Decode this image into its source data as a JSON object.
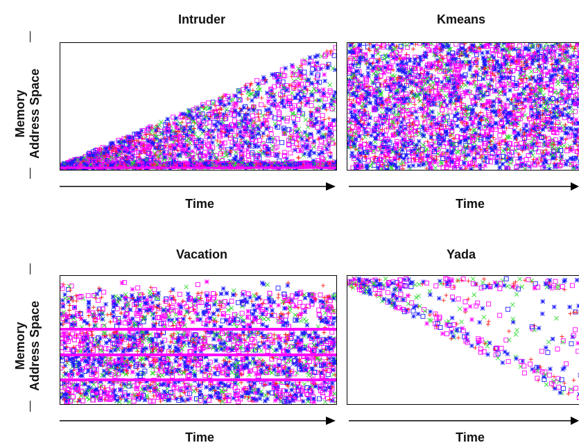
{
  "figure": {
    "ylabel_line1": "Memory",
    "ylabel_line2": "Address Space",
    "xlabel": "Time"
  },
  "colors": {
    "magenta": "#ff00ff",
    "blue": "#1a1aff",
    "green": "#33dd33",
    "red": "#ff2020"
  },
  "chart_data": [
    {
      "type": "scatter",
      "title": "Intruder",
      "xlabel": "Time",
      "ylabel": "Memory Address Space",
      "pattern": "triangular",
      "markers": [
        "square",
        "asterisk",
        "cross",
        "plus"
      ],
      "grid": false
    },
    {
      "type": "scatter",
      "title": "Kmeans",
      "xlabel": "Time",
      "ylabel": "",
      "pattern": "dense-uniform",
      "markers": [
        "square",
        "asterisk",
        "cross",
        "plus"
      ],
      "grid": false
    },
    {
      "type": "scatter",
      "title": "Vacation",
      "xlabel": "Time",
      "ylabel": "Memory Address Space",
      "pattern": "horizontal-bands",
      "markers": [
        "square",
        "asterisk",
        "cross",
        "plus"
      ],
      "grid": false
    },
    {
      "type": "scatter",
      "title": "Yada",
      "xlabel": "Time",
      "ylabel": "",
      "pattern": "sparse-diagonal",
      "markers": [
        "square",
        "asterisk",
        "cross",
        "plus"
      ],
      "grid": false
    }
  ]
}
